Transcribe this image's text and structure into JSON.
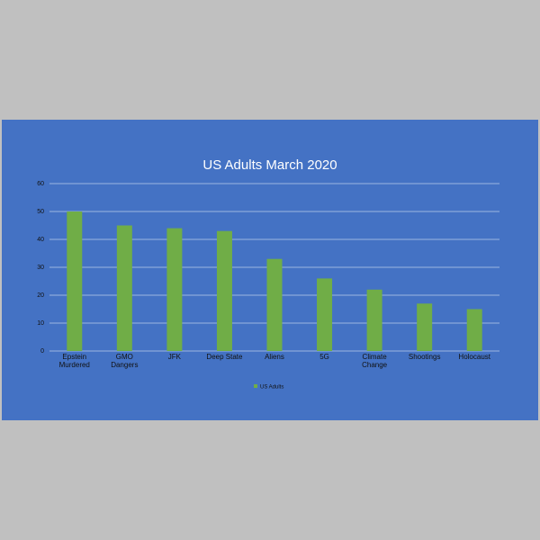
{
  "chart_data": {
    "type": "bar",
    "title": "US Adults March 2020",
    "categories": [
      "Epstein Murdered",
      "GMO Dangers",
      "JFK",
      "Deep State",
      "Aliens",
      "5G",
      "Climate Change",
      "Shootings",
      "Holocaust"
    ],
    "series": [
      {
        "name": "US Adults",
        "color": "#70ad47",
        "values": [
          50,
          45,
          44,
          43,
          33,
          26,
          22,
          17,
          15
        ]
      }
    ],
    "ylim": [
      0,
      60
    ],
    "yticks": [
      0,
      10,
      20,
      30,
      40,
      50,
      60
    ],
    "grid": true,
    "legend": "bottom"
  }
}
